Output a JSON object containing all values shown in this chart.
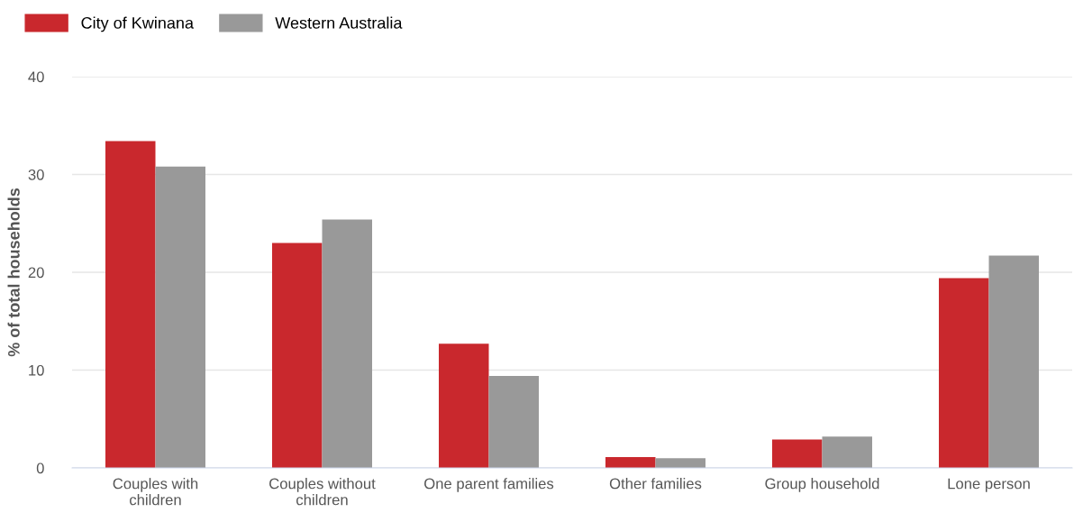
{
  "chart_data": {
    "type": "bar",
    "ylabel": "% of total households",
    "categories": [
      "Couples with children",
      "Couples without children",
      "One parent families",
      "Other families",
      "Group household",
      "Lone person"
    ],
    "series": [
      {
        "name": "City of Kwinana",
        "color": "#c9282d",
        "values": [
          33.4,
          23.0,
          12.7,
          1.1,
          2.9,
          19.4
        ]
      },
      {
        "name": "Western Australia",
        "color": "#999999",
        "values": [
          30.8,
          25.4,
          9.4,
          1.0,
          3.2,
          21.7
        ]
      }
    ],
    "ylim": [
      0,
      40
    ],
    "yticks": [
      0,
      10,
      20,
      30,
      40
    ],
    "grid": "y",
    "legend": "top left"
  }
}
